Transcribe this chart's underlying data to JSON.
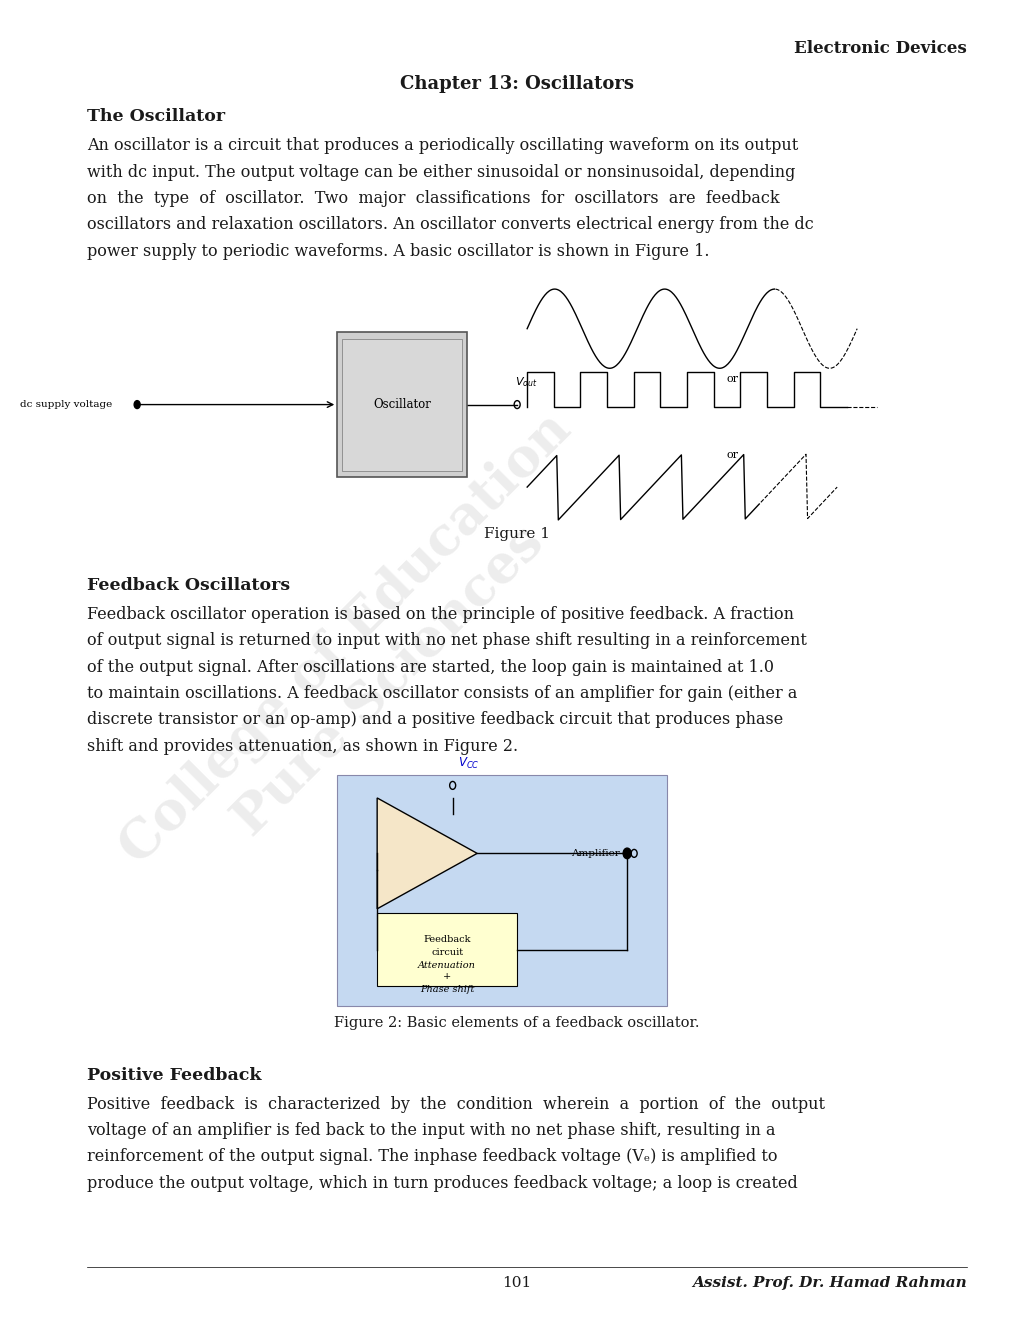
{
  "page_width": 10.2,
  "page_height": 13.2,
  "bg_color": "#ffffff",
  "header_right": "Electronic Devices",
  "chapter_title": "Chapter 13: Oscillators",
  "section1_title": "The Oscillator",
  "section1_body": [
    "An oscillator is a circuit that produces a periodically oscillating waveform on its output",
    "with dc input. The output voltage can be either sinusoidal or nonsinusoidal, depending",
    "on  the  type  of  oscillator.  Two  major  classifications  for  oscillators  are  feedback",
    "oscillators and relaxation oscillators. An oscillator converts electrical energy from the dc",
    "power supply to periodic waveforms. A basic oscillator is shown in Figure 1."
  ],
  "figure1_caption": "Figure 1",
  "section2_title": "Feedback Oscillators",
  "section2_body": [
    "Feedback oscillator operation is based on the principle of positive feedback. A fraction",
    "of output signal is returned to input with no net phase shift resulting in a reinforcement",
    "of the output signal. After oscillations are started, the loop gain is maintained at 1.0",
    "to maintain oscillations. A feedback oscillator consists of an amplifier for gain (either a",
    "discrete transistor or an op-amp) and a positive feedback circuit that produces phase",
    "shift and provides attenuation, as shown in Figure 2."
  ],
  "figure2_caption": "Figure 2: Basic elements of a feedback oscillator.",
  "section3_title": "Positive Feedback",
  "section3_body": [
    "Positive  feedback  is  characterized  by  the  condition  wherein  a  portion  of  the  output",
    "voltage of an amplifier is fed back to the input with no net phase shift, resulting in a",
    "reinforcement of the output signal. The inphase feedback voltage (Vₑ) is amplified to",
    "produce the output voltage, which in turn produces feedback voltage; a loop is created"
  ],
  "footer_page": "101",
  "footer_right": "Assist. Prof. Dr. Hamad Rahman",
  "watermark_text": "College of Education\nPure Sciences",
  "text_color": "#1a1a1a",
  "body_fontsize": 11.5,
  "title_fontsize": 12.5
}
